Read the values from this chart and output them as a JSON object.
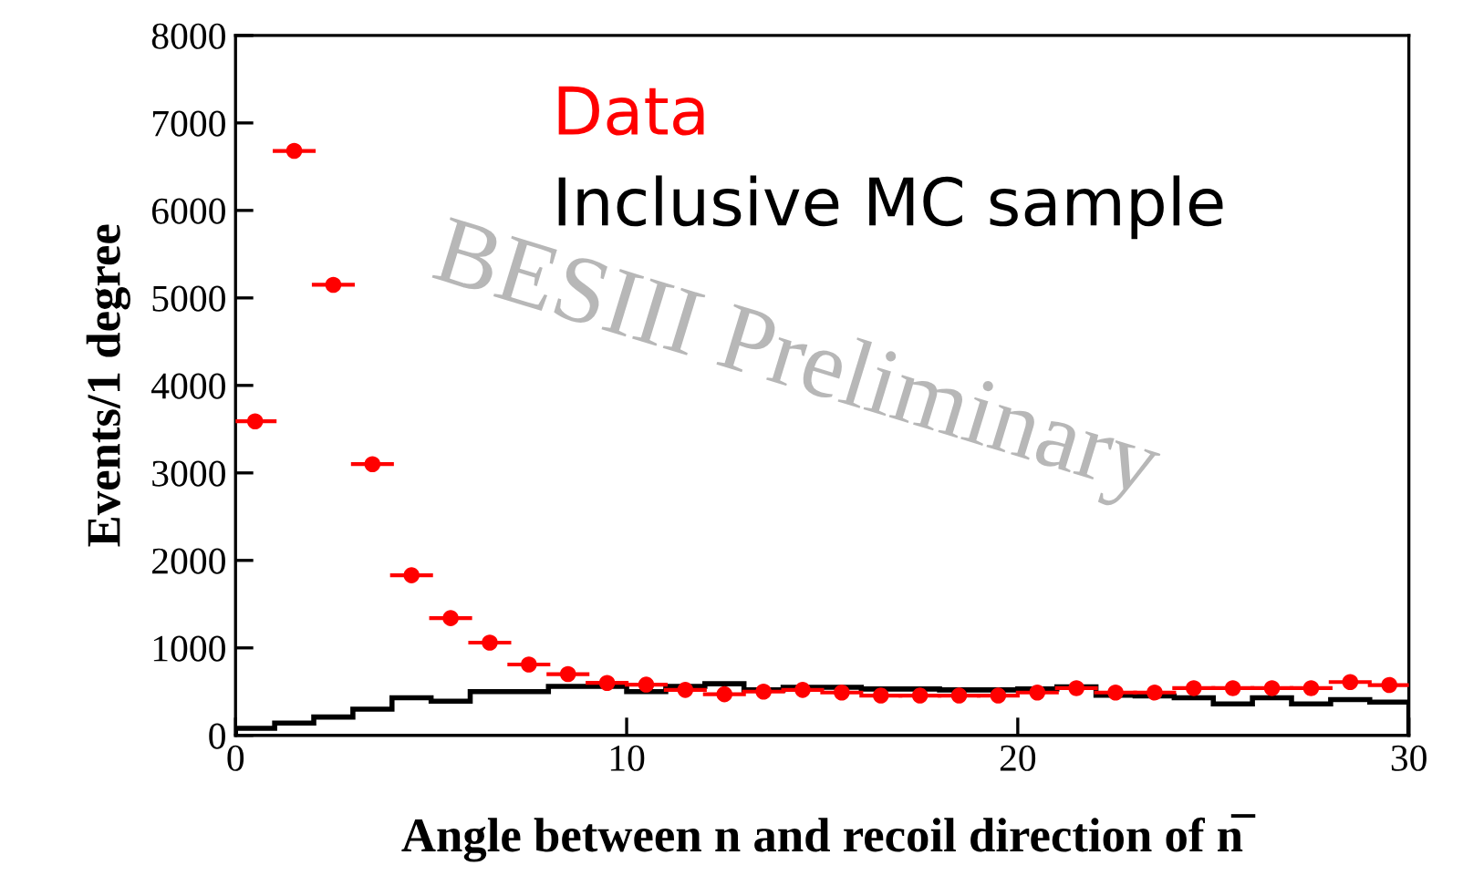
{
  "chart_data": {
    "type": "scatter",
    "xlabel": "Angle between n and recoil direction of n̅",
    "ylabel": "Events/1 degree",
    "annotations": [
      "BESIII Preliminary"
    ],
    "xlim": [
      0,
      30
    ],
    "xticks": [
      0,
      10,
      20,
      30
    ],
    "ylim": [
      0,
      8000
    ],
    "yticks": [
      0,
      1000,
      2000,
      3000,
      4000,
      5000,
      6000,
      7000,
      8000
    ],
    "grid": false,
    "series": [
      {
        "name": "Data",
        "color": "#ff0000",
        "marker": "circle",
        "x": [
          0.5,
          1.5,
          2.5,
          3.5,
          4.5,
          5.5,
          6.5,
          7.5,
          8.5,
          9.5,
          10.5,
          11.5,
          12.5,
          13.5,
          14.5,
          15.5,
          16.5,
          17.5,
          18.5,
          19.5,
          20.5,
          21.5,
          22.5,
          23.5,
          24.5,
          25.5,
          26.5,
          27.5,
          28.5,
          29.5
        ],
        "values": [
          3590,
          6680,
          5150,
          3100,
          1830,
          1340,
          1060,
          810,
          700,
          600,
          580,
          520,
          470,
          500,
          520,
          490,
          455,
          455,
          455,
          455,
          490,
          540,
          490,
          490,
          540,
          540,
          540,
          540,
          610,
          575
        ],
        "xerrors": [
          0.5,
          0.5,
          0.5,
          0.5,
          0.5,
          0.5,
          0.5,
          0.5,
          0.5,
          0.5,
          0.5,
          0.5,
          0.5,
          0.5,
          0.5,
          0.5,
          0.5,
          0.5,
          0.5,
          0.5,
          0.5,
          0.5,
          0.5,
          0.5,
          0.5,
          0.5,
          0.5,
          0.5,
          0.5,
          0.5
        ]
      },
      {
        "name": "Inclusive MC sample",
        "type": "histogram",
        "color": "#000000",
        "bins": [
          0,
          1,
          2,
          3,
          4,
          5,
          6,
          7,
          8,
          9,
          10,
          11,
          12,
          13,
          14,
          15,
          16,
          17,
          18,
          19,
          20,
          21,
          22,
          23,
          24,
          25,
          26,
          27,
          28,
          29,
          30
        ],
        "values": [
          80,
          140,
          210,
          300,
          430,
          390,
          500,
          500,
          560,
          560,
          500,
          560,
          590,
          520,
          550,
          550,
          530,
          530,
          520,
          520,
          530,
          555,
          460,
          450,
          430,
          360,
          430,
          360,
          410,
          380
        ]
      }
    ]
  }
}
